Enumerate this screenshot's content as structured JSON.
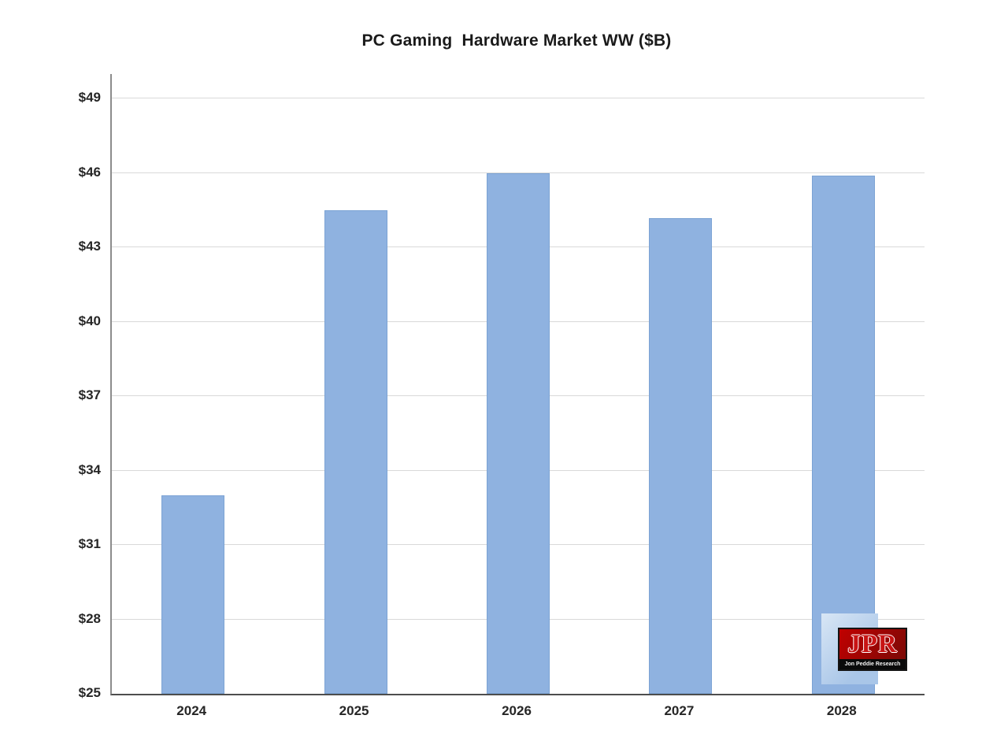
{
  "chart_data": {
    "type": "bar",
    "title": "PC Gaming  Hardware Market WW ($B)",
    "categories": [
      "2024",
      "2025",
      "2026",
      "2027",
      "2028"
    ],
    "values": [
      33.0,
      44.5,
      46.0,
      44.2,
      45.9
    ],
    "xlabel": "",
    "ylabel": "",
    "ylim": [
      25,
      50
    ],
    "ytick_values": [
      25,
      28,
      31,
      34,
      37,
      40,
      43,
      46,
      49
    ],
    "ytick_labels": [
      "$25",
      "$28",
      "$31",
      "$34",
      "$37",
      "$40",
      "$43",
      "$46",
      "$49"
    ],
    "grid": true,
    "legend": "none",
    "bar_color": "#8FB2E0",
    "bar_border_color": "#7CA3D4",
    "gridline_color": "#D9D9D9",
    "axis_line_color": "#8C8C8C",
    "baseline_color": "#4D4D4D",
    "title_color": "#1A1A1A",
    "tick_label_color": "#262626"
  },
  "logo": {
    "text": "JPR",
    "subtext": "Jon Peddie Research",
    "red": "#C00000",
    "red_dark": "#7A0A06",
    "letter_color": "#C81414",
    "strip_color": "#0A0A0A",
    "panel_blue": "#A9C6E8",
    "panel_blue_light": "#D8E6F5"
  }
}
